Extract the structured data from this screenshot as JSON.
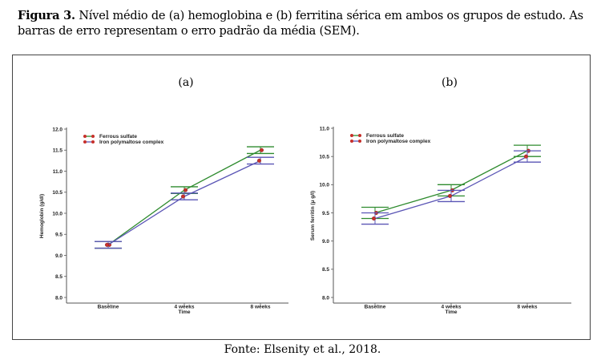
{
  "caption": {
    "figure_label": "Figura 3.",
    "text": " Nível médio de (a) hemoglobina e (b) ferritina sérica em ambos os grupos de estudo. As barras de erro representam o erro padrão da média (SEM)."
  },
  "source": "Fonte: Elsenity et al., 2018.",
  "colors": {
    "ferrous": "#2e8b2e",
    "iron_poly": "#5a55b5",
    "marker": "#c8302b",
    "axis": "#555555"
  },
  "chart_data": [
    {
      "panel_label": "(a)",
      "type": "line",
      "categories": [
        "Baseline",
        "4 weeks",
        "8 weeks"
      ],
      "xlabel": "Time",
      "ylabel": "Hemoglobin (g/dl)",
      "ylim": [
        8.0,
        12.0
      ],
      "yticks": [
        "8.0",
        "8.5",
        "9.0",
        "9.5",
        "10.0",
        "10.5",
        "11.0",
        "11.5",
        "12.0"
      ],
      "legend_position": "top-left",
      "series": [
        {
          "name": "Ferrous sulfate",
          "color": "#2e8b2e",
          "values": [
            9.25,
            10.55,
            11.5
          ],
          "err": [
            0.08,
            0.08,
            0.08
          ]
        },
        {
          "name": "Iron polymaltose complex",
          "color": "#5a55b5",
          "values": [
            9.25,
            10.4,
            11.25
          ],
          "err": [
            0.08,
            0.08,
            0.08
          ]
        }
      ]
    },
    {
      "panel_label": "(b)",
      "type": "line",
      "categories": [
        "Baseline",
        "4 weeks",
        "8 weeks"
      ],
      "xlabel": "Time",
      "ylabel": "Serum ferritin (μ g/l)",
      "ylim": [
        8.0,
        11.0
      ],
      "yticks": [
        "8.0",
        "8.5",
        "9.0",
        "9.5",
        "10.0",
        "10.5",
        "11.0"
      ],
      "legend_position": "top-left",
      "series": [
        {
          "name": "Ferrous sulfate",
          "color": "#2e8b2e",
          "values": [
            9.5,
            9.9,
            10.6
          ],
          "err": [
            0.1,
            0.1,
            0.1
          ]
        },
        {
          "name": "Iron polymaltose complex",
          "color": "#5a55b5",
          "values": [
            9.4,
            9.8,
            10.5
          ],
          "err": [
            0.1,
            0.1,
            0.1
          ]
        }
      ]
    }
  ]
}
